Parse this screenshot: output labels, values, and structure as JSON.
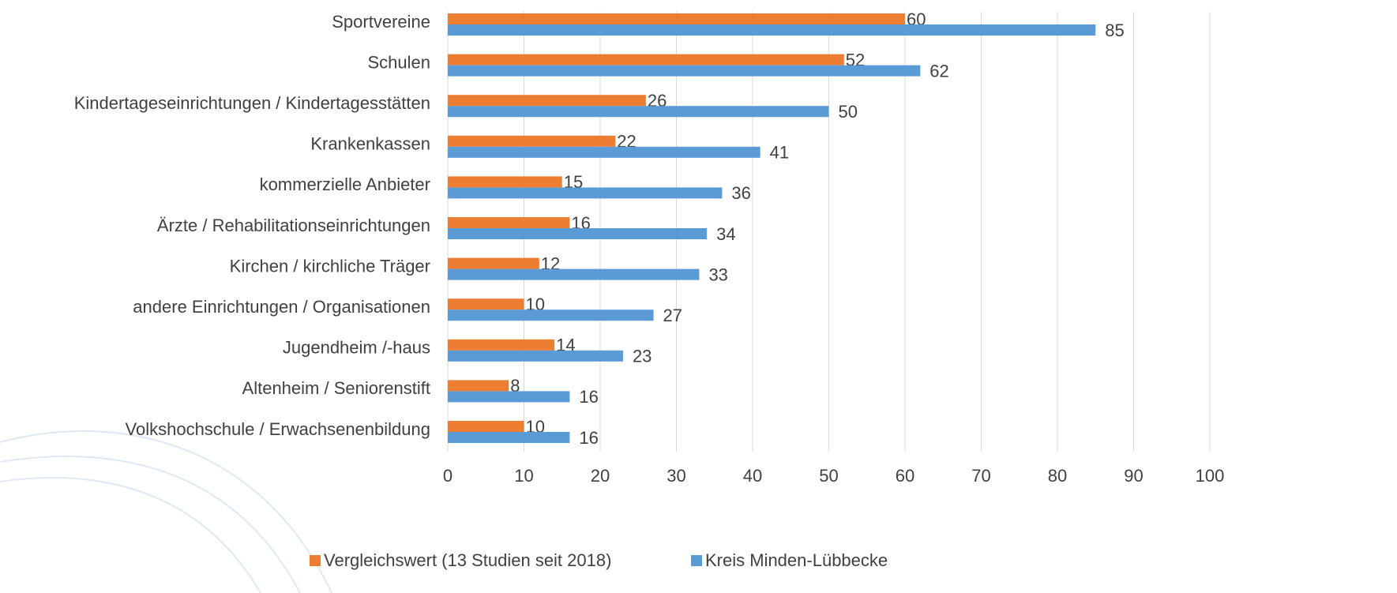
{
  "chart_data": {
    "type": "bar",
    "orientation": "horizontal",
    "categories": [
      "Sportvereine",
      "Schulen",
      "Kindertageseinrichtungen / Kindertagesstätten",
      "Krankenkassen",
      "kommerzielle Anbieter",
      "Ärzte / Rehabilitationseinrichtungen",
      "Kirchen / kirchliche Träger",
      "andere Einrichtungen / Organisationen",
      "Jugendheim /-haus",
      "Altenheim / Seniorenstift",
      "Volkshochschule / Erwachsenenbildung"
    ],
    "series": [
      {
        "name": "Vergleichswert (13 Studien seit 2018)",
        "color": "#ed7d31",
        "values": [
          60,
          52,
          26,
          22,
          15,
          16,
          12,
          10,
          14,
          8,
          10
        ]
      },
      {
        "name": "Kreis Minden-Lübbecke",
        "color": "#5b9bd5",
        "values": [
          85,
          62,
          50,
          41,
          36,
          34,
          33,
          27,
          23,
          16,
          16
        ]
      }
    ],
    "xlim": [
      0,
      100
    ],
    "xticks": [
      0,
      10,
      20,
      30,
      40,
      50,
      60,
      70,
      80,
      90,
      100
    ],
    "grid": true,
    "legend": "bottom"
  }
}
